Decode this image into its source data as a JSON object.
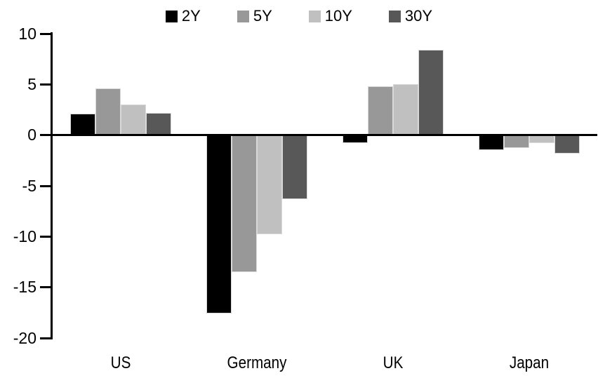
{
  "chart_data": {
    "type": "bar",
    "title": "",
    "categories": [
      "US",
      "Germany",
      "UK",
      "Japan"
    ],
    "series": [
      {
        "name": "2Y",
        "color": "#000000",
        "values": [
          2.1,
          -17.6,
          -0.8,
          -1.5
        ]
      },
      {
        "name": "5Y",
        "color": "#989898",
        "values": [
          4.6,
          -13.5,
          4.8,
          -1.3
        ]
      },
      {
        "name": "10Y",
        "color": "#c0c0c0",
        "values": [
          3.0,
          -9.8,
          5.0,
          -0.8
        ]
      },
      {
        "name": "30Y",
        "color": "#585858",
        "values": [
          2.2,
          -6.3,
          8.4,
          -1.8
        ]
      }
    ],
    "ylim": [
      -20,
      10
    ],
    "yticks": [
      10,
      5,
      0,
      -5,
      -10,
      -15,
      -20
    ],
    "xlabel": "",
    "ylabel": "",
    "grid": false,
    "legend_position": "top-center",
    "axis_color": "#000000",
    "background_color": "#ffffff",
    "bar_border_color": "#d9d9d9"
  }
}
